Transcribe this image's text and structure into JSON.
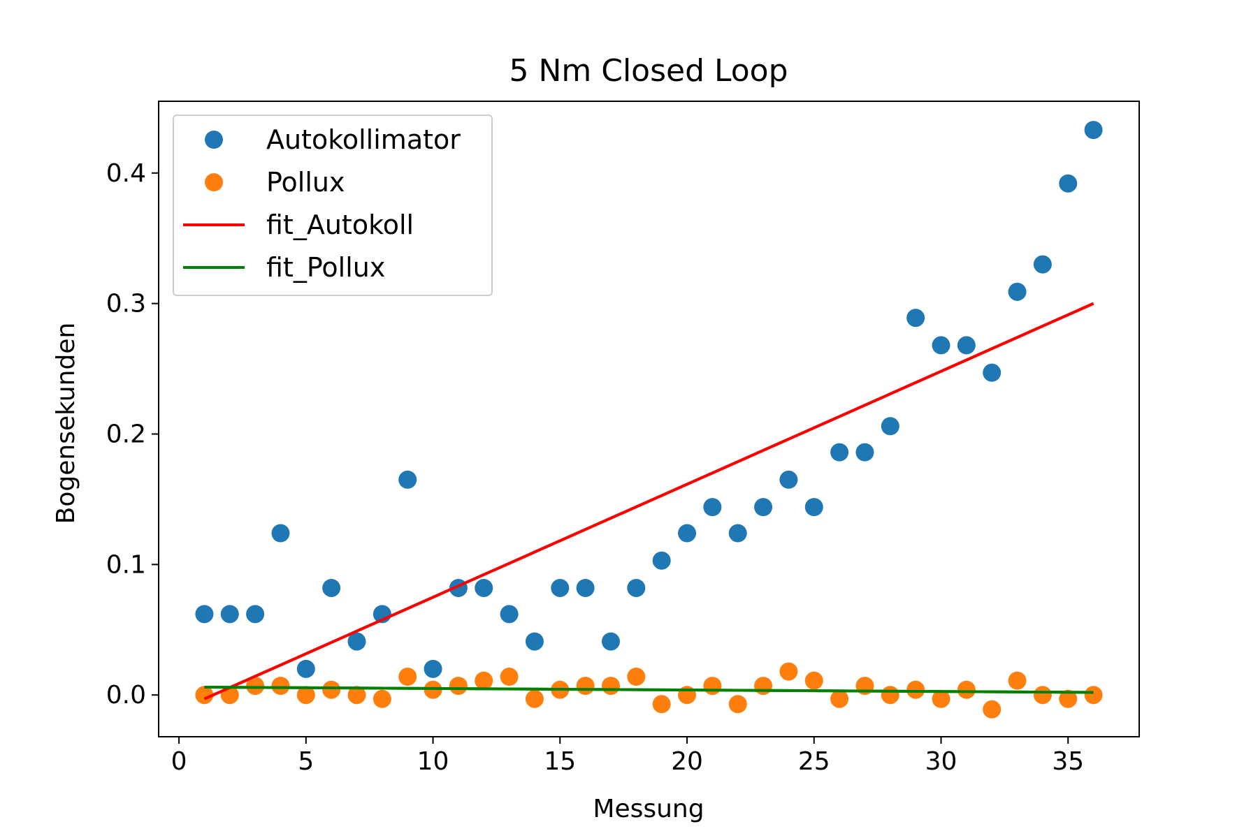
{
  "chart_data": {
    "type": "scatter",
    "title": "5 Nm Closed Loop",
    "xlabel": "Messung",
    "ylabel": "Bogensekunden",
    "xlim": [
      -0.8,
      37.8
    ],
    "ylim": [
      -0.032,
      0.455
    ],
    "xticks": [
      0,
      5,
      10,
      15,
      20,
      25,
      30,
      35
    ],
    "yticks": [
      0.0,
      0.1,
      0.2,
      0.3,
      0.4
    ],
    "ytick_labels": [
      "0.0",
      "0.1",
      "0.2",
      "0.3",
      "0.4"
    ],
    "grid": false,
    "legend_position": "top-left",
    "series": [
      {
        "name": "Autokollimator",
        "kind": "scatter",
        "color": "#1f77b4",
        "x": [
          1,
          2,
          3,
          4,
          5,
          6,
          7,
          8,
          9,
          10,
          11,
          12,
          13,
          14,
          15,
          16,
          17,
          18,
          19,
          20,
          21,
          22,
          23,
          24,
          25,
          26,
          27,
          28,
          29,
          30,
          31,
          32,
          33,
          34,
          35,
          36
        ],
        "y": [
          0.062,
          0.062,
          0.062,
          0.124,
          0.02,
          0.082,
          0.041,
          0.062,
          0.165,
          0.02,
          0.082,
          0.082,
          0.062,
          0.041,
          0.082,
          0.082,
          0.041,
          0.082,
          0.103,
          0.124,
          0.144,
          0.124,
          0.144,
          0.165,
          0.144,
          0.186,
          0.186,
          0.206,
          0.289,
          0.268,
          0.268,
          0.247,
          0.309,
          0.33,
          0.392,
          0.433
        ]
      },
      {
        "name": "Pollux",
        "kind": "scatter",
        "color": "#ff7f0e",
        "x": [
          1,
          2,
          3,
          4,
          5,
          6,
          7,
          8,
          9,
          10,
          11,
          12,
          13,
          14,
          15,
          16,
          17,
          18,
          19,
          20,
          21,
          22,
          23,
          24,
          25,
          26,
          27,
          28,
          29,
          30,
          31,
          32,
          33,
          34,
          35,
          36
        ],
        "y": [
          0.0,
          0.0,
          0.007,
          0.007,
          0.0,
          0.004,
          0.0,
          -0.003,
          0.014,
          0.004,
          0.007,
          0.011,
          0.014,
          -0.003,
          0.004,
          0.007,
          0.007,
          0.014,
          -0.007,
          0.0,
          0.007,
          -0.007,
          0.007,
          0.018,
          0.011,
          -0.003,
          0.007,
          0.0,
          0.004,
          -0.003,
          0.004,
          -0.011,
          0.011,
          0.0,
          -0.003,
          0.0
        ]
      },
      {
        "name": "fit_Autokoll",
        "kind": "line",
        "color": "#ff0000",
        "x": [
          1,
          36
        ],
        "y": [
          -0.003,
          0.3
        ]
      },
      {
        "name": "fit_Pollux",
        "kind": "line",
        "color": "#008000",
        "x": [
          1,
          36
        ],
        "y": [
          0.006,
          0.002
        ]
      }
    ]
  }
}
